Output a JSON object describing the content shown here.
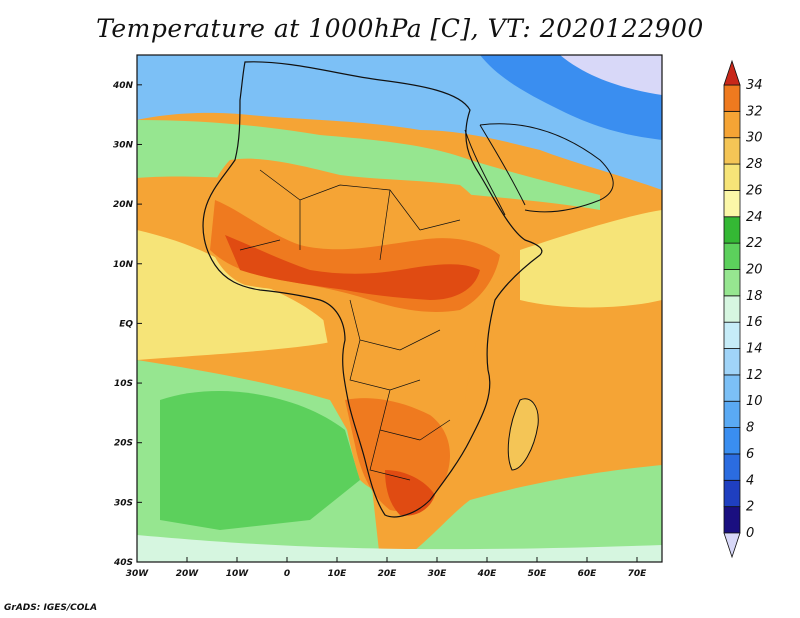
{
  "title": "Temperature at 1000hPa [C], VT: 2020122900",
  "credit": "GrADS: IGES/COLA",
  "map": {
    "lon_range": [
      -30,
      75
    ],
    "lat_range": [
      -40,
      45
    ],
    "lon_ticks": [
      {
        "value": -30,
        "label": "30W"
      },
      {
        "value": -20,
        "label": "20W"
      },
      {
        "value": -10,
        "label": "10W"
      },
      {
        "value": 0,
        "label": "0"
      },
      {
        "value": 10,
        "label": "10E"
      },
      {
        "value": 20,
        "label": "20E"
      },
      {
        "value": 30,
        "label": "30E"
      },
      {
        "value": 40,
        "label": "40E"
      },
      {
        "value": 50,
        "label": "50E"
      },
      {
        "value": 60,
        "label": "60E"
      },
      {
        "value": 70,
        "label": "70E"
      }
    ],
    "lat_ticks": [
      {
        "value": 40,
        "label": "40N"
      },
      {
        "value": 30,
        "label": "30N"
      },
      {
        "value": 20,
        "label": "20N"
      },
      {
        "value": 10,
        "label": "10N"
      },
      {
        "value": 0,
        "label": "EQ"
      },
      {
        "value": -10,
        "label": "10S"
      },
      {
        "value": -20,
        "label": "20S"
      },
      {
        "value": -30,
        "label": "30S"
      },
      {
        "value": -40,
        "label": "40S"
      }
    ]
  },
  "colorbar": {
    "levels": [
      0,
      2,
      4,
      6,
      8,
      10,
      12,
      14,
      16,
      18,
      20,
      22,
      24,
      26,
      28,
      30,
      32,
      34
    ],
    "labels": [
      "0",
      "2",
      "4",
      "6",
      "8",
      "10",
      "12",
      "14",
      "16",
      "18",
      "20",
      "22",
      "24",
      "26",
      "28",
      "30",
      "32",
      "34"
    ],
    "colors": [
      "#1a0f80",
      "#1f3fc0",
      "#2b6ce0",
      "#3a8ef0",
      "#5aaaf4",
      "#7cc0f6",
      "#a0d4f8",
      "#c6ecf8",
      "#d6f6e0",
      "#96e690",
      "#5cd05c",
      "#34b834",
      "#fbf7a8",
      "#f6e478",
      "#f4c556",
      "#f5a435",
      "#ef7a1f",
      "#e04b12",
      "#b81e0a",
      "#d8d8f8"
    ],
    "below_color": "#d8d8f8",
    "above_color": "#c8281a"
  }
}
